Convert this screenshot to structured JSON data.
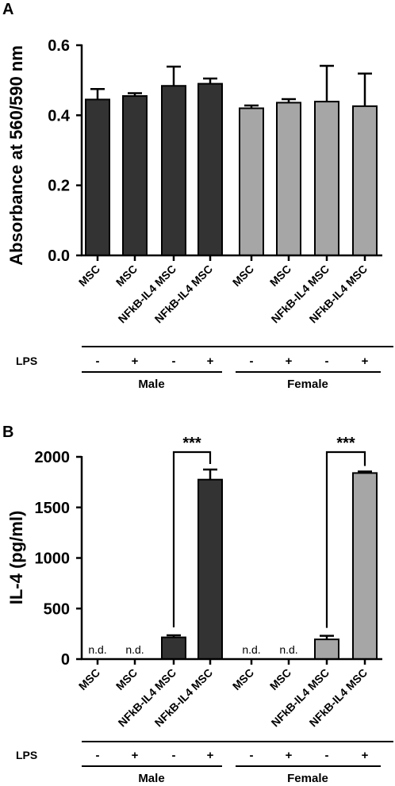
{
  "chart_data": [
    {
      "panel": "A",
      "type": "bar",
      "ylabel": "Absorbance at 560/590 nm",
      "ylim": [
        0,
        0.6
      ],
      "yticks": [
        "0.0",
        "0.2",
        "0.4",
        "0.6"
      ],
      "categories": [
        "MSC",
        "MSC",
        "NFkB-IL4 MSC",
        "NFkB-IL4 MSC",
        "MSC",
        "MSC",
        "NFkB-IL4 MSC",
        "NFkB-IL4 MSC"
      ],
      "values": [
        0.445,
        0.455,
        0.484,
        0.49,
        0.42,
        0.436,
        0.439,
        0.426
      ],
      "errors": [
        0.03,
        0.008,
        0.055,
        0.015,
        0.008,
        0.01,
        0.102,
        0.093
      ],
      "colors": [
        "#333333",
        "#333333",
        "#333333",
        "#333333",
        "#a6a6a6",
        "#a6a6a6",
        "#a6a6a6",
        "#a6a6a6"
      ],
      "lps_label": "LPS",
      "lps": [
        "-",
        "+",
        "-",
        "+",
        "-",
        "+",
        "-",
        "+"
      ],
      "groups": [
        "Male",
        "Female"
      ]
    },
    {
      "panel": "B",
      "type": "bar",
      "ylabel": "IL-4 (pg/ml)",
      "ylim": [
        0,
        2000
      ],
      "yticks": [
        "0",
        "500",
        "1000",
        "1500",
        "2000"
      ],
      "categories": [
        "MSC",
        "MSC",
        "NFkB-IL4 MSC",
        "NFkB-IL4 MSC",
        "MSC",
        "MSC",
        "NFkB-IL4 MSC",
        "NFkB-IL4 MSC"
      ],
      "values": [
        0,
        0,
        215,
        1775,
        0,
        0,
        195,
        1840
      ],
      "errors": [
        0,
        0,
        20,
        100,
        0,
        0,
        35,
        15
      ],
      "nd_label": "n.d.",
      "not_detected": [
        true,
        true,
        false,
        false,
        true,
        true,
        false,
        false
      ],
      "colors": [
        "#333333",
        "#333333",
        "#333333",
        "#333333",
        "#a6a6a6",
        "#a6a6a6",
        "#a6a6a6",
        "#a6a6a6"
      ],
      "significance": [
        {
          "from": 2,
          "to": 3,
          "label": "***"
        },
        {
          "from": 6,
          "to": 7,
          "label": "***"
        }
      ],
      "lps_label": "LPS",
      "lps": [
        "-",
        "+",
        "-",
        "+",
        "-",
        "+",
        "-",
        "+"
      ],
      "groups": [
        "Male",
        "Female"
      ]
    }
  ]
}
